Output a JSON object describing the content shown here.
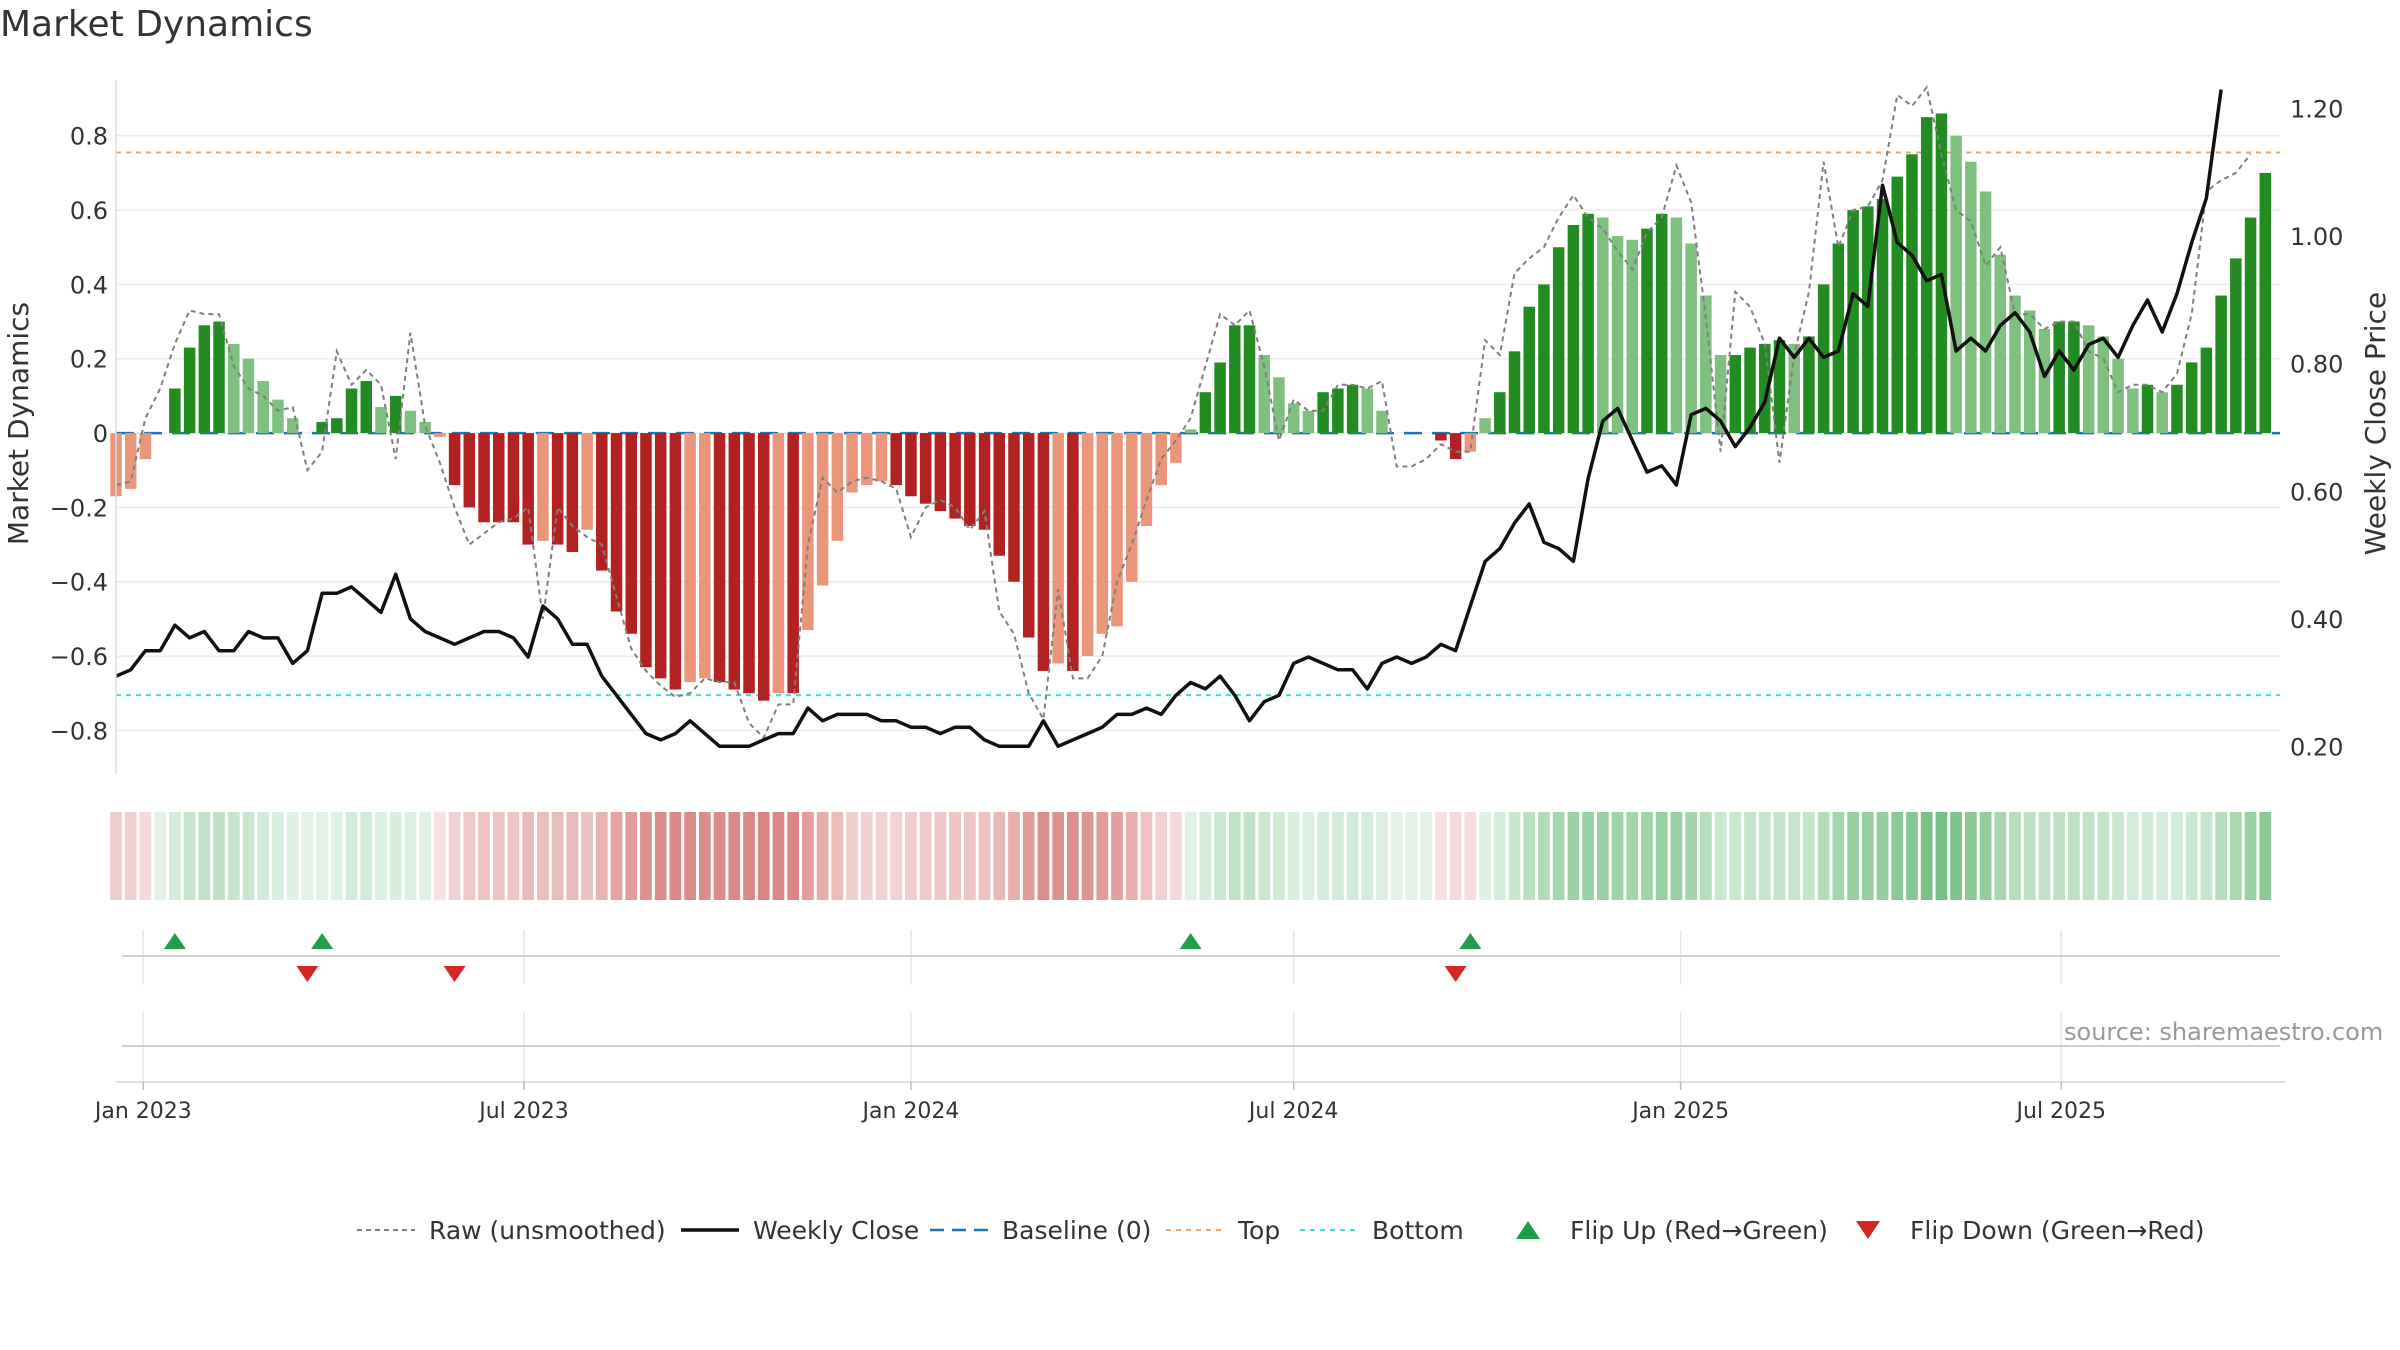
{
  "page": {
    "title": "Market Dynamics",
    "source": "source: sharemaestro.com"
  },
  "chart_data": {
    "type": "bar",
    "title": "Market Dynamics",
    "ylabel": "Market Dynamics",
    "y2label": "Weekly Close Price",
    "ylim": [
      -0.92,
      0.95
    ],
    "y2lim": [
      0.155,
      1.245
    ],
    "yticks": [
      "0.8",
      "0.6",
      "0.4",
      "0.2",
      "0",
      "−0.2",
      "−0.4",
      "−0.6",
      "−0.8"
    ],
    "y2ticks": [
      "1.20",
      "1.00",
      "0.80",
      "0.60",
      "0.40",
      "0.20"
    ],
    "x_start": "2022-12-19",
    "x_end": "2025-10-13",
    "xticks": [
      {
        "date": "2023-01-01",
        "label": "Jan 2023"
      },
      {
        "date": "2023-07-01",
        "label": "Jul 2023"
      },
      {
        "date": "2024-01-01",
        "label": "Jan 2024"
      },
      {
        "date": "2024-07-01",
        "label": "Jul 2024"
      },
      {
        "date": "2025-01-01",
        "label": "Jan 2025"
      },
      {
        "date": "2025-07-01",
        "label": "Jul 2025"
      }
    ],
    "top_level": 0.755,
    "bottom_level": -0.705,
    "baseline": 0,
    "weeks_start": "2022-12-19",
    "weeks_interval_days": 7,
    "dynamics": [
      -0.17,
      -0.15,
      -0.07,
      0,
      0.12,
      0.23,
      0.29,
      0.3,
      0.24,
      0.2,
      0.14,
      0.09,
      0.04,
      0.0,
      0.03,
      0.04,
      0.12,
      0.14,
      0.07,
      0.1,
      0.06,
      0.03,
      -0.01,
      -0.14,
      -0.2,
      -0.24,
      -0.24,
      -0.24,
      -0.3,
      -0.29,
      -0.3,
      -0.32,
      -0.26,
      -0.37,
      -0.48,
      -0.54,
      -0.63,
      -0.66,
      -0.69,
      -0.67,
      -0.66,
      -0.67,
      -0.69,
      -0.7,
      -0.72,
      -0.7,
      -0.7,
      -0.53,
      -0.41,
      -0.29,
      -0.16,
      -0.14,
      -0.13,
      -0.14,
      -0.17,
      -0.19,
      -0.21,
      -0.23,
      -0.25,
      -0.26,
      -0.33,
      -0.4,
      -0.55,
      -0.64,
      -0.62,
      -0.64,
      -0.6,
      -0.54,
      -0.52,
      -0.4,
      -0.25,
      -0.14,
      -0.08,
      0.01,
      0.11,
      0.19,
      0.29,
      0.29,
      0.21,
      0.15,
      0.08,
      0.06,
      0.11,
      0.12,
      0.13,
      0.12,
      0.06,
      0,
      0,
      0,
      -0.02,
      -0.07,
      -0.05,
      0.04,
      0.11,
      0.22,
      0.34,
      0.4,
      0.5,
      0.56,
      0.59,
      0.58,
      0.53,
      0.52,
      0.55,
      0.59,
      0.58,
      0.51,
      0.37,
      0.21,
      0.21,
      0.23,
      0.24,
      0.25,
      0.24,
      0.26,
      0.4,
      0.51,
      0.6,
      0.61,
      0.63,
      0.69,
      0.75,
      0.85,
      0.86,
      0.8,
      0.73,
      0.65,
      0.48,
      0.37,
      0.33,
      0.28,
      0.3,
      0.3,
      0.29,
      0.26,
      0.2,
      0.12,
      0.13,
      0.11,
      0.13,
      0.19,
      0.23,
      0.37,
      0.47,
      0.58,
      0.7
    ],
    "raw": [
      -0.14,
      -0.13,
      0.04,
      0.12,
      0.24,
      0.33,
      0.32,
      0.32,
      0.18,
      0.12,
      0.1,
      0.06,
      0.07,
      -0.1,
      -0.05,
      0.22,
      0.13,
      0.17,
      0.13,
      -0.07,
      0.27,
      0.02,
      -0.08,
      -0.2,
      -0.3,
      -0.27,
      -0.24,
      -0.23,
      -0.2,
      -0.5,
      -0.2,
      -0.25,
      -0.28,
      -0.3,
      -0.44,
      -0.58,
      -0.64,
      -0.68,
      -0.71,
      -0.7,
      -0.66,
      -0.67,
      -0.67,
      -0.78,
      -0.82,
      -0.73,
      -0.73,
      -0.3,
      -0.12,
      -0.16,
      -0.13,
      -0.12,
      -0.13,
      -0.15,
      -0.28,
      -0.2,
      -0.18,
      -0.2,
      -0.26,
      -0.21,
      -0.48,
      -0.54,
      -0.7,
      -0.77,
      -0.42,
      -0.66,
      -0.66,
      -0.6,
      -0.4,
      -0.3,
      -0.18,
      -0.07,
      -0.02,
      0.04,
      0.18,
      0.32,
      0.29,
      0.33,
      0.18,
      -0.02,
      0.09,
      0.06,
      0.06,
      0.13,
      0.13,
      0.12,
      0.14,
      -0.09,
      -0.09,
      -0.07,
      -0.03,
      -0.05,
      -0.05,
      0.25,
      0.21,
      0.43,
      0.47,
      0.5,
      0.58,
      0.64,
      0.58,
      0.55,
      0.49,
      0.44,
      0.54,
      0.58,
      0.72,
      0.62,
      0.31,
      -0.05,
      0.38,
      0.34,
      0.24,
      -0.08,
      0.21,
      0.38,
      0.73,
      0.5,
      0.6,
      0.61,
      0.68,
      0.91,
      0.88,
      0.93,
      0.75,
      0.6,
      0.57,
      0.45,
      0.5,
      0.32,
      0.32,
      0.28,
      0.3,
      0.3,
      0.22,
      0.2,
      0.11,
      0.13,
      0.13,
      0.11,
      0.16,
      0.32,
      0.65,
      0.68,
      0.7,
      0.75
    ],
    "close": [
      0.31,
      0.32,
      0.35,
      0.35,
      0.39,
      0.37,
      0.38,
      0.35,
      0.35,
      0.38,
      0.37,
      0.37,
      0.33,
      0.35,
      0.44,
      0.44,
      0.45,
      0.43,
      0.41,
      0.47,
      0.4,
      0.38,
      0.37,
      0.36,
      0.37,
      0.38,
      0.38,
      0.37,
      0.34,
      0.42,
      0.4,
      0.36,
      0.36,
      0.31,
      0.28,
      0.25,
      0.22,
      0.21,
      0.22,
      0.24,
      0.22,
      0.2,
      0.2,
      0.2,
      0.21,
      0.22,
      0.22,
      0.26,
      0.24,
      0.25,
      0.25,
      0.25,
      0.24,
      0.24,
      0.23,
      0.23,
      0.22,
      0.23,
      0.23,
      0.21,
      0.2,
      0.2,
      0.2,
      0.24,
      0.2,
      0.21,
      0.22,
      0.23,
      0.25,
      0.25,
      0.26,
      0.25,
      0.28,
      0.3,
      0.29,
      0.31,
      0.28,
      0.24,
      0.27,
      0.28,
      0.33,
      0.34,
      0.33,
      0.32,
      0.32,
      0.29,
      0.33,
      0.34,
      0.33,
      0.34,
      0.36,
      0.35,
      0.42,
      0.49,
      0.51,
      0.55,
      0.58,
      0.52,
      0.51,
      0.49,
      0.62,
      0.71,
      0.73,
      0.68,
      0.63,
      0.64,
      0.61,
      0.72,
      0.73,
      0.71,
      0.67,
      0.7,
      0.74,
      0.84,
      0.81,
      0.84,
      0.81,
      0.82,
      0.91,
      0.89,
      1.08,
      0.99,
      0.97,
      0.93,
      0.94,
      0.82,
      0.84,
      0.82,
      0.86,
      0.88,
      0.85,
      0.78,
      0.82,
      0.79,
      0.83,
      0.84,
      0.81,
      0.86,
      0.9,
      0.85,
      0.91,
      0.99,
      1.06,
      1.23
    ],
    "flips_up": [
      4,
      14,
      73,
      92
    ],
    "flips_down": [
      13,
      23,
      91
    ],
    "series": [
      {
        "name": "Raw (unsmoothed)"
      },
      {
        "name": "Weekly Close"
      },
      {
        "name": "Baseline (0)"
      },
      {
        "name": "Top"
      },
      {
        "name": "Bottom"
      },
      {
        "name": "Flip Up (Red→Green)"
      },
      {
        "name": "Flip Down (Green→Red)"
      }
    ],
    "grid": true,
    "legend_position": "bottom-center",
    "colors": {
      "pos_strong": "#228b22",
      "pos_weak": "#7fbf7f",
      "neg_strong": "#b22222",
      "neg_weak": "#e9967a",
      "raw": "#808080",
      "close": "#111111",
      "baseline": "#1f77b4",
      "top": "#f4a460",
      "bottom": "#40e0d0",
      "flip_up": "#1e9e4a",
      "flip_down": "#d62728",
      "heat_pos": "#4fae62",
      "heat_neg": "#c84848"
    }
  }
}
